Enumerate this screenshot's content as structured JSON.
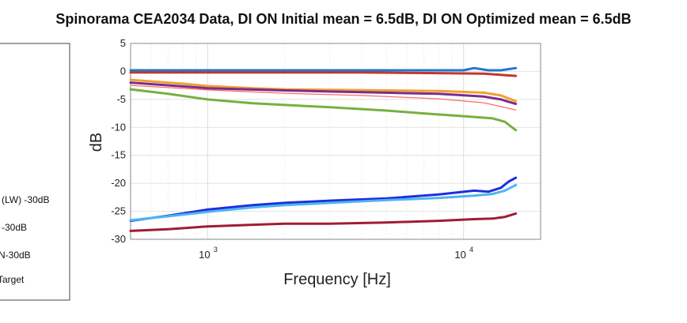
{
  "chart_data": {
    "type": "line",
    "title": "Spinorama CEA2034 Data, DI ON Initial mean = 6.5dB, DI ON Optimized mean = 6.5dB",
    "xlabel": "Frequency [Hz]",
    "ylabel": "dB",
    "xscale": "log",
    "xlim": [
      500,
      20000
    ],
    "ylim": [
      -30,
      5
    ],
    "yticks": [
      5,
      0,
      -5,
      -10,
      -15,
      -20,
      -25,
      -30
    ],
    "xticks": [
      {
        "value": 1000,
        "base": "10",
        "exp": "3"
      },
      {
        "value": 10000,
        "base": "10",
        "exp": "4"
      }
    ],
    "grid": true,
    "legend_placement": "left, partially cut off",
    "legend": [
      "(LW) -30dB",
      "-30dB",
      "N-30dB",
      "Target"
    ],
    "series": [
      {
        "color": "#1f77d0",
        "x": [
          500,
          1000,
          2000,
          4000,
          8000,
          10000,
          11000,
          12500,
          14000,
          16000
        ],
        "y": [
          0.2,
          0.2,
          0.2,
          0.2,
          0.2,
          0.2,
          0.6,
          0.2,
          0.2,
          0.6
        ]
      },
      {
        "color": "#c0392b",
        "x": [
          500,
          1000,
          2000,
          4000,
          8000,
          12000,
          16000
        ],
        "y": [
          -0.2,
          -0.2,
          -0.2,
          -0.2,
          -0.3,
          -0.4,
          -0.8
        ]
      },
      {
        "color": "#f0a030",
        "x": [
          500,
          800,
          1000,
          1500,
          2000,
          3000,
          5000,
          8000,
          12000,
          14000,
          16000
        ],
        "y": [
          -1.5,
          -2.2,
          -2.6,
          -3.0,
          -3.2,
          -3.3,
          -3.4,
          -3.5,
          -3.8,
          -4.3,
          -5.3
        ]
      },
      {
        "color": "#7b2d8e",
        "x": [
          500,
          1000,
          2000,
          3000,
          5000,
          8000,
          12000,
          14000,
          16000
        ],
        "y": [
          -2.0,
          -3.0,
          -3.4,
          -3.6,
          -3.8,
          -4.0,
          -4.5,
          -5.0,
          -5.8
        ]
      },
      {
        "color": "#ff6b6b",
        "x": [
          500,
          1000,
          2000,
          4000,
          8000,
          12000,
          16000
        ],
        "y": [
          -2.5,
          -3.3,
          -3.9,
          -4.3,
          -4.9,
          -5.6,
          -6.9
        ]
      },
      {
        "color": "#77b041",
        "x": [
          500,
          700,
          1000,
          1500,
          2000,
          3000,
          5000,
          7000,
          10000,
          13000,
          14500,
          16000
        ],
        "y": [
          -3.2,
          -4.0,
          -5.0,
          -5.7,
          -6.0,
          -6.4,
          -7.0,
          -7.5,
          -8.0,
          -8.4,
          -9.0,
          -10.5
        ]
      },
      {
        "color": "#1e2de0",
        "x": [
          500,
          700,
          1000,
          1500,
          2000,
          3000,
          5000,
          8000,
          11000,
          12500,
          14000,
          15000,
          16000
        ],
        "y": [
          -26.7,
          -25.8,
          -24.7,
          -23.9,
          -23.5,
          -23.1,
          -22.7,
          -22.0,
          -21.3,
          -21.5,
          -20.8,
          -19.7,
          -19.0
        ]
      },
      {
        "color": "#4db5f0",
        "x": [
          500,
          700,
          1000,
          1500,
          2000,
          3000,
          5000,
          8000,
          11000,
          13000,
          14500,
          16000
        ],
        "y": [
          -26.6,
          -25.9,
          -25.1,
          -24.3,
          -23.9,
          -23.5,
          -23.0,
          -22.6,
          -22.2,
          -21.9,
          -21.3,
          -20.3
        ]
      },
      {
        "color": "#a01c34",
        "x": [
          500,
          700,
          1000,
          1500,
          2000,
          3000,
          5000,
          8000,
          11000,
          13000,
          14500,
          16000
        ],
        "y": [
          -28.5,
          -28.2,
          -27.7,
          -27.4,
          -27.2,
          -27.2,
          -27.0,
          -26.7,
          -26.4,
          -26.3,
          -26.0,
          -25.4
        ]
      }
    ]
  }
}
